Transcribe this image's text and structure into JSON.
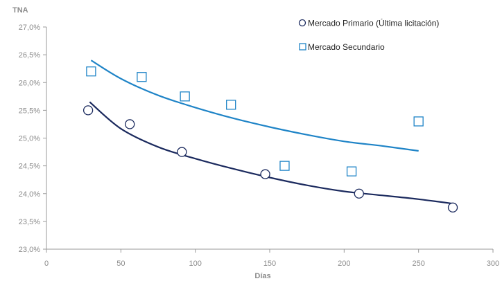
{
  "chart_data": {
    "type": "scatter",
    "title": "",
    "xlabel": "Días",
    "ylabel": "TNA",
    "xlim": [
      0,
      300
    ],
    "ylim": [
      23.0,
      27.0
    ],
    "x_ticks": [
      0,
      50,
      100,
      150,
      200,
      250,
      300
    ],
    "y_ticks": [
      23.0,
      23.5,
      24.0,
      24.5,
      25.0,
      25.5,
      26.0,
      26.5,
      27.0
    ],
    "x_tick_labels": [
      "0",
      "50",
      "100",
      "150",
      "200",
      "250",
      "300"
    ],
    "y_tick_labels": [
      "23,0%",
      "23,5%",
      "24,0%",
      "24,5%",
      "25,0%",
      "25,5%",
      "26,0%",
      "26,5%",
      "27,0%"
    ],
    "grid": false,
    "legend_position": "top-right",
    "series": [
      {
        "name": "Mercado Primario (Última licitación)",
        "marker": "circle",
        "color": "#1b2a5e",
        "points": [
          {
            "x": 28,
            "y": 25.5
          },
          {
            "x": 56,
            "y": 25.25
          },
          {
            "x": 91,
            "y": 24.75
          },
          {
            "x": 147,
            "y": 24.35
          },
          {
            "x": 210,
            "y": 24.0
          },
          {
            "x": 273,
            "y": 23.75
          }
        ],
        "trend": {
          "x": [
            29,
            50,
            75,
            100,
            125,
            150,
            175,
            200,
            225,
            250,
            273
          ],
          "y": [
            25.65,
            25.17,
            24.84,
            24.63,
            24.45,
            24.29,
            24.15,
            24.04,
            23.97,
            23.9,
            23.82
          ]
        }
      },
      {
        "name": "Mercado Secundario",
        "marker": "square",
        "color": "#1f84c7",
        "points": [
          {
            "x": 30,
            "y": 26.2
          },
          {
            "x": 64,
            "y": 26.1
          },
          {
            "x": 93,
            "y": 25.75
          },
          {
            "x": 124,
            "y": 25.6
          },
          {
            "x": 160,
            "y": 24.5
          },
          {
            "x": 205,
            "y": 24.4
          },
          {
            "x": 250,
            "y": 25.3
          }
        ],
        "trend": {
          "x": [
            30,
            50,
            75,
            100,
            125,
            150,
            175,
            200,
            225,
            250
          ],
          "y": [
            26.4,
            26.07,
            25.77,
            25.55,
            25.36,
            25.2,
            25.06,
            24.94,
            24.86,
            24.77
          ]
        }
      }
    ]
  }
}
